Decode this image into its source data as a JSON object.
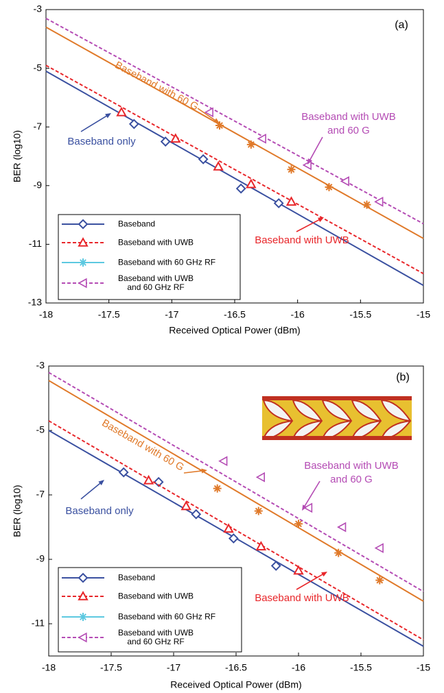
{
  "chart_data": [
    {
      "type": "line",
      "panel_label": "(a)",
      "xlabel": "Received Optical Power (dBm)",
      "ylabel": "BER (log10)",
      "xlim": [
        -18,
        -15
      ],
      "ylim": [
        -13,
        -3
      ],
      "xticks": [
        -18,
        -17.5,
        -17,
        -16.5,
        -16,
        -15.5,
        -15
      ],
      "yticks": [
        -13,
        -11,
        -9,
        -7,
        -5,
        -3
      ],
      "series": [
        {
          "name": "Baseband",
          "color": "#3a50a0",
          "marker": "diamond",
          "dash": false,
          "x": [
            -17.3,
            -17.05,
            -16.75,
            -16.45,
            -16.15
          ],
          "values": [
            -6.9,
            -7.5,
            -8.1,
            -9.1,
            -9.6
          ],
          "fit": [
            -5.1,
            -12.4
          ]
        },
        {
          "name": "Baseband with UWB",
          "color": "#e8262a",
          "marker": "triangle",
          "dash": true,
          "x": [
            -17.4,
            -16.97,
            -16.63,
            -16.37,
            -16.05
          ],
          "values": [
            -6.5,
            -7.4,
            -8.35,
            -8.95,
            -9.55
          ],
          "fit": [
            -4.9,
            -12.0
          ]
        },
        {
          "name": "Baseband with 60 GHz RF",
          "color": "#e07a2a",
          "legend_color": "#5bc8e0",
          "marker": "star",
          "dash": false,
          "x": [
            -16.62,
            -16.37,
            -16.05,
            -15.75,
            -15.45
          ],
          "values": [
            -6.95,
            -7.6,
            -8.45,
            -9.05,
            -9.65
          ],
          "fit": [
            -3.6,
            -10.8
          ]
        },
        {
          "name": "Baseband with UWB\nand 60 GHz RF",
          "color": "#b44bb4",
          "marker": "triangle-left",
          "dash": true,
          "x": [
            -16.7,
            -16.28,
            -15.92,
            -15.62,
            -15.35
          ],
          "values": [
            -6.5,
            -7.4,
            -8.3,
            -8.85,
            -9.55
          ],
          "fit": [
            -3.3,
            -10.3
          ]
        }
      ],
      "annotations": [
        {
          "text": "Baseband with 60 G",
          "color": "#e07a2a"
        },
        {
          "text": "Baseband only",
          "color": "#3a50a0"
        },
        {
          "text": "Baseband with UWB\nand 60 G",
          "color": "#b44bb4"
        },
        {
          "text": "Baseband with UWB",
          "color": "#e8262a"
        }
      ]
    },
    {
      "type": "line",
      "panel_label": "(b)",
      "xlabel": "Received Optical Power (dBm)",
      "ylabel": "BER (log10)",
      "xlim": [
        -18,
        -15
      ],
      "ylim": [
        -12,
        -3
      ],
      "xticks": [
        -18,
        -17.5,
        -17,
        -16.5,
        -16,
        -15.5,
        -15
      ],
      "yticks": [
        -11,
        -9,
        -7,
        -5,
        -3
      ],
      "series": [
        {
          "name": "Baseband",
          "color": "#3a50a0",
          "marker": "diamond",
          "dash": false,
          "x": [
            -17.4,
            -17.12,
            -16.82,
            -16.52,
            -16.18
          ],
          "values": [
            -6.3,
            -6.6,
            -7.6,
            -8.35,
            -9.2
          ],
          "fit": [
            -5.0,
            -11.7
          ]
        },
        {
          "name": "Baseband with UWB",
          "color": "#e8262a",
          "marker": "triangle",
          "dash": true,
          "x": [
            -17.2,
            -16.9,
            -16.56,
            -16.3,
            -16.0
          ],
          "values": [
            -6.55,
            -7.35,
            -8.05,
            -8.6,
            -9.35
          ],
          "fit": [
            -4.7,
            -11.5
          ]
        },
        {
          "name": "Baseband with 60 GHz RF",
          "color": "#e07a2a",
          "legend_color": "#5bc8e0",
          "marker": "star",
          "dash": false,
          "x": [
            -16.65,
            -16.32,
            -16.0,
            -15.68,
            -15.35
          ],
          "values": [
            -6.8,
            -7.5,
            -7.9,
            -8.8,
            -9.65
          ],
          "fit": [
            -3.45,
            -10.3
          ]
        },
        {
          "name": "Baseband with UWB\nand 60 GHz RF",
          "color": "#b44bb4",
          "marker": "triangle-left",
          "dash": true,
          "x": [
            -16.6,
            -16.3,
            -15.92,
            -15.65,
            -15.35
          ],
          "values": [
            -5.95,
            -6.45,
            -7.4,
            -8.0,
            -8.65
          ],
          "fit": [
            -3.2,
            -10.0
          ]
        }
      ],
      "annotations": [
        {
          "text": "Baseband with 60 G",
          "color": "#e07a2a"
        },
        {
          "text": "Baseband only",
          "color": "#3a50a0"
        },
        {
          "text": "Baseband with UWB\nand 60 G",
          "color": "#b44bb4"
        },
        {
          "text": "Baseband with UWB",
          "color": "#e8262a"
        }
      ]
    }
  ]
}
